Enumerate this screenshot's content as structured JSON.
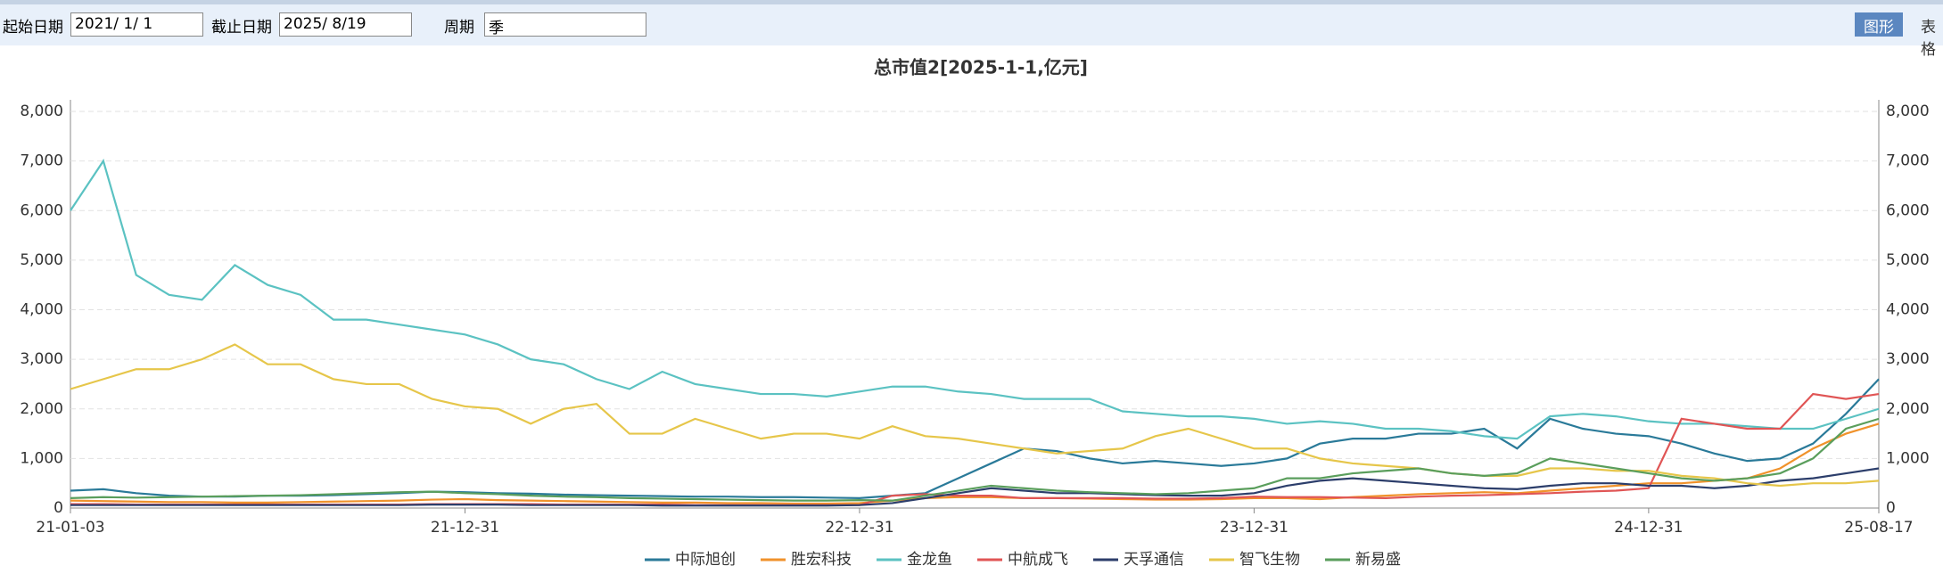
{
  "toolbar": {
    "start_label": "起始日期",
    "start_value": "2021/ 1/ 1",
    "end_label": "截止日期",
    "end_value": "2025/ 8/19",
    "period_label": "周期",
    "period_value": "季",
    "btn_chart": "图形",
    "btn_table": "表格"
  },
  "chart_data": {
    "type": "line",
    "title": "总市值2[2025-1-1,亿元]",
    "categories": [
      "21-01-03",
      null,
      null,
      null,
      null,
      null,
      null,
      null,
      null,
      null,
      null,
      null,
      "21-12-31",
      null,
      null,
      null,
      null,
      null,
      null,
      null,
      null,
      null,
      null,
      null,
      "22-12-31",
      null,
      null,
      null,
      null,
      null,
      null,
      null,
      null,
      null,
      null,
      null,
      "23-12-31",
      null,
      null,
      null,
      null,
      null,
      null,
      null,
      null,
      null,
      null,
      null,
      "24-12-31",
      null,
      null,
      null,
      null,
      null,
      null,
      "25-08-17"
    ],
    "ylim": [
      0,
      8000
    ],
    "yticks": [
      0,
      {
        "value": 1000,
        "label": "1,000"
      },
      {
        "value": 2000,
        "label": "2,000"
      },
      {
        "value": 3000,
        "label": "3,000"
      },
      {
        "value": 4000,
        "label": "4,000"
      },
      {
        "value": 5000,
        "label": "5,000"
      },
      {
        "value": 6000,
        "label": "6,000"
      },
      {
        "value": 7000,
        "label": "7,000"
      },
      {
        "value": 8000,
        "label": "8,000"
      }
    ],
    "grid": true,
    "series": [
      {
        "name": "中际旭创",
        "color": "#2a7a99",
        "values": [
          350,
          380,
          300,
          250,
          230,
          230,
          250,
          250,
          260,
          280,
          300,
          330,
          320,
          300,
          290,
          270,
          260,
          250,
          240,
          230,
          230,
          220,
          220,
          210,
          200,
          250,
          300,
          600,
          900,
          1200,
          1150,
          1000,
          900,
          950,
          900,
          850,
          900,
          1000,
          1300,
          1400,
          1400,
          1500,
          1500,
          1600,
          1200,
          1800,
          1600,
          1500,
          1450,
          1300,
          1100,
          950,
          1000,
          1300,
          1900,
          2600
        ]
      },
      {
        "name": "胜宏科技",
        "color": "#f0922b",
        "values": [
          150,
          140,
          130,
          120,
          120,
          110,
          110,
          120,
          130,
          140,
          150,
          170,
          180,
          160,
          150,
          140,
          130,
          120,
          110,
          110,
          100,
          100,
          90,
          90,
          100,
          150,
          200,
          220,
          220,
          200,
          200,
          190,
          180,
          170,
          170,
          180,
          200,
          200,
          180,
          220,
          250,
          280,
          300,
          320,
          300,
          350,
          400,
          450,
          500,
          500,
          550,
          600,
          800,
          1200,
          1500,
          1700
        ]
      },
      {
        "name": "金龙鱼",
        "color": "#5bc2c2",
        "values": [
          6000,
          7000,
          4700,
          4300,
          4200,
          4900,
          4500,
          4300,
          3800,
          3800,
          3700,
          3600,
          3500,
          3300,
          3000,
          2900,
          2600,
          2400,
          2750,
          2500,
          2400,
          2300,
          2300,
          2250,
          2350,
          2450,
          2450,
          2350,
          2300,
          2200,
          2200,
          2200,
          1950,
          1900,
          1850,
          1850,
          1800,
          1700,
          1750,
          1700,
          1600,
          1600,
          1550,
          1450,
          1400,
          1850,
          1900,
          1850,
          1750,
          1700,
          1700,
          1650,
          1600,
          1600,
          1800,
          2000
        ]
      },
      {
        "name": "中航成飞",
        "color": "#e05555",
        "values": [
          80,
          80,
          70,
          70,
          70,
          70,
          70,
          70,
          70,
          70,
          70,
          80,
          80,
          80,
          80,
          70,
          70,
          70,
          70,
          60,
          60,
          60,
          60,
          60,
          60,
          250,
          280,
          250,
          250,
          200,
          200,
          200,
          200,
          190,
          190,
          200,
          230,
          220,
          220,
          210,
          200,
          230,
          250,
          260,
          280,
          300,
          330,
          350,
          400,
          1800,
          1700,
          1600,
          1600,
          2300,
          2200,
          2300
        ]
      },
      {
        "name": "天孚通信",
        "color": "#2c3e6b",
        "values": [
          60,
          60,
          60,
          60,
          60,
          60,
          60,
          60,
          60,
          60,
          60,
          70,
          70,
          70,
          60,
          60,
          60,
          60,
          50,
          50,
          50,
          50,
          50,
          50,
          60,
          100,
          200,
          300,
          400,
          350,
          300,
          300,
          280,
          260,
          250,
          250,
          300,
          450,
          550,
          600,
          550,
          500,
          450,
          400,
          380,
          450,
          500,
          500,
          450,
          450,
          400,
          450,
          550,
          600,
          700,
          800
        ]
      },
      {
        "name": "智飞生物",
        "color": "#e6c64a",
        "values": [
          2400,
          2600,
          2800,
          2800,
          3000,
          3300,
          2900,
          2900,
          2600,
          2500,
          2500,
          2200,
          2050,
          2000,
          1700,
          2000,
          2100,
          1500,
          1500,
          1800,
          1600,
          1400,
          1500,
          1500,
          1400,
          1650,
          1450,
          1400,
          1300,
          1200,
          1100,
          1150,
          1200,
          1450,
          1600,
          1400,
          1200,
          1200,
          1000,
          900,
          850,
          800,
          700,
          650,
          650,
          800,
          800,
          750,
          750,
          650,
          600,
          500,
          450,
          500,
          500,
          550
        ]
      },
      {
        "name": "新易盛",
        "color": "#5a9e5c",
        "values": [
          200,
          220,
          210,
          220,
          230,
          240,
          250,
          260,
          280,
          300,
          320,
          330,
          300,
          280,
          250,
          230,
          220,
          200,
          190,
          180,
          170,
          160,
          150,
          150,
          160,
          150,
          250,
          350,
          450,
          400,
          350,
          320,
          300,
          280,
          300,
          350,
          400,
          600,
          600,
          700,
          750,
          800,
          700,
          650,
          700,
          1000,
          900,
          800,
          700,
          600,
          550,
          600,
          700,
          1000,
          1600,
          1800
        ]
      }
    ]
  }
}
